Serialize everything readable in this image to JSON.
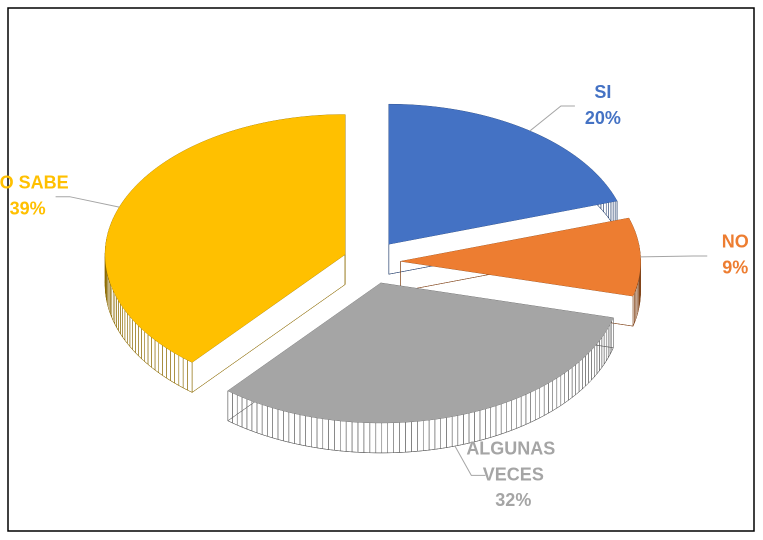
{
  "chart_data": {
    "type": "pie",
    "categories": [
      "SI",
      "NO",
      "ALGUNAS VECES",
      "NO SABE"
    ],
    "values": [
      20,
      9,
      32,
      39
    ],
    "value_labels": [
      "20%",
      "9%",
      "32%",
      "39%"
    ],
    "colors": [
      "#4472c4",
      "#ed7d31",
      "#a5a5a5",
      "#ffc000"
    ]
  }
}
